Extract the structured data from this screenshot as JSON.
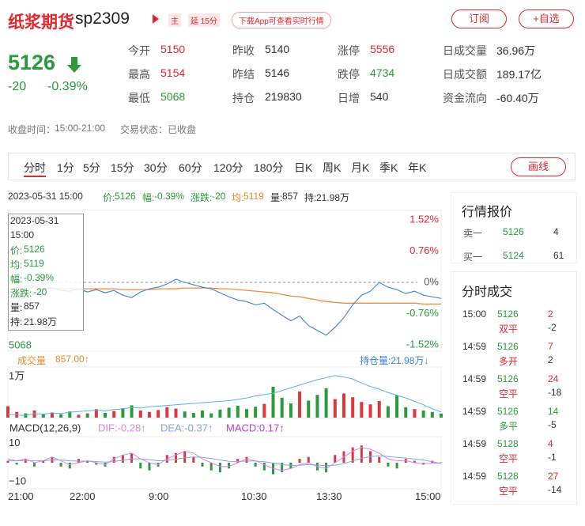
{
  "header": {
    "title": "纸浆期货",
    "code": "sp2309",
    "badge_main": "主",
    "badge_delay": "延 15分",
    "download": "下载App可查看实时行情",
    "subscribe": "订阅",
    "watchlist": "+自选"
  },
  "quote": {
    "price": "5126",
    "change": "-20",
    "change_pct": "-0.39%"
  },
  "stats": [
    {
      "label": "今开",
      "value": "5150",
      "tone": "up"
    },
    {
      "label": "最高",
      "value": "5154",
      "tone": "up"
    },
    {
      "label": "最低",
      "value": "5068",
      "tone": "down"
    },
    {
      "label": "昨收",
      "value": "5140"
    },
    {
      "label": "昨结",
      "value": "5146"
    },
    {
      "label": "持仓",
      "value": "219830"
    },
    {
      "label": "涨停",
      "value": "5556",
      "tone": "up"
    },
    {
      "label": "跌停",
      "value": "4734",
      "tone": "down"
    },
    {
      "label": "日增",
      "value": "540"
    },
    {
      "label": "日成交量",
      "value": "36.96万"
    },
    {
      "label": "日成交额",
      "value": "189.17亿"
    },
    {
      "label": "资金流向",
      "value": "-60.40万"
    }
  ],
  "status": {
    "close_time_label": "收盘时间：",
    "close_time": "15:00-21:00",
    "state_label": "交易状态：",
    "state": "已收盘"
  },
  "tabs": {
    "items": [
      "分时",
      "1分",
      "5分",
      "15分",
      "30分",
      "60分",
      "120分",
      "180分",
      "日K",
      "周K",
      "月K",
      "季K",
      "年K"
    ],
    "active": 0,
    "draw": "画线"
  },
  "info": {
    "datetime": "2023-05-31 15:00",
    "items": [
      {
        "label": "价:",
        "value": "5126",
        "tone": "down"
      },
      {
        "label": "幅:",
        "value": "-0.39%",
        "tone": "down"
      },
      {
        "label": "涨跌:",
        "value": "-20",
        "tone": "down"
      },
      {
        "label": "均:",
        "value": "5119",
        "tone": "avg"
      },
      {
        "label": "量:",
        "value": "857"
      },
      {
        "label": "持:",
        "value": "21.98万"
      }
    ]
  },
  "tooltip": {
    "date": "2023-05-31",
    "time": "15:00",
    "items": [
      {
        "label": "价:",
        "value": "5126",
        "tone": "down"
      },
      {
        "label": "均:",
        "value": "5119",
        "tone": "down"
      },
      {
        "label": "幅:",
        "value": "-0.39%",
        "tone": "down"
      },
      {
        "label": "涨跌:",
        "value": "-20",
        "tone": "down"
      },
      {
        "label": "量:",
        "value": "857"
      },
      {
        "label": "持:",
        "value": "21.98万"
      }
    ]
  },
  "intraday": {
    "price_color": "#3b82d6",
    "avg_color": "#f08a3c",
    "low_label": "5068",
    "ylim": [
      5068,
      5224
    ],
    "pct_ticks": [
      {
        "value": 5224,
        "label": "1.52%"
      },
      {
        "value": 5185,
        "label": "0.76%"
      },
      {
        "value": 5146,
        "label": "0%"
      },
      {
        "value": 5107,
        "label": "-0.76%"
      },
      {
        "value": 5068,
        "label": "-1.52%"
      }
    ],
    "price": [
      5136,
      5140,
      5138,
      5141,
      5137,
      5139,
      5136,
      5135,
      5138,
      5134,
      5137,
      5133,
      5136,
      5130,
      5127,
      5134,
      5138,
      5140,
      5144,
      5150,
      5146,
      5143,
      5140,
      5138,
      5133,
      5128,
      5124,
      5122,
      5118,
      5120,
      5112,
      5105,
      5098,
      5104,
      5092,
      5086,
      5080,
      5090,
      5102,
      5118,
      5130,
      5135,
      5146,
      5140,
      5137,
      5132,
      5135,
      5130,
      5128,
      5126
    ],
    "avg": [
      5138,
      5138,
      5138,
      5139,
      5139,
      5139,
      5138,
      5138,
      5138,
      5138,
      5138,
      5138,
      5138,
      5137,
      5137,
      5137,
      5137,
      5138,
      5138,
      5138,
      5139,
      5139,
      5139,
      5139,
      5138,
      5138,
      5137,
      5136,
      5135,
      5134,
      5133,
      5131,
      5129,
      5128,
      5126,
      5124,
      5122,
      5121,
      5120,
      5120,
      5120,
      5120,
      5120,
      5120,
      5120,
      5120,
      5120,
      5119,
      5119,
      5119
    ],
    "time_labels": [
      "21:00",
      "22:00",
      "9:00",
      "10:30",
      "13:30",
      "15:00"
    ]
  },
  "volume": {
    "label": "成交量",
    "value": "857.00↑",
    "hold_label": "持仓量:21.98万↓",
    "ylim": [
      0,
      10000
    ],
    "yticks": [
      {
        "value": 10000,
        "label": "1万"
      }
    ],
    "holdlim": [
      219000,
      226000
    ],
    "hold_color": "#56b3e8",
    "values": [
      2400,
      1200,
      900,
      1500,
      800,
      1100,
      700,
      1300,
      600,
      900,
      1800,
      1000,
      1400,
      2000,
      2600,
      1500,
      1200,
      1600,
      2200,
      1900,
      1300,
      1000,
      1500,
      900,
      1700,
      2100,
      2500,
      1800,
      2300,
      2900,
      6500,
      4200,
      3000,
      5500,
      3600,
      4800,
      6200,
      3900,
      5100,
      4300,
      3300,
      2800,
      3500,
      2400,
      4700,
      2200,
      1800,
      1500,
      1200,
      857
    ],
    "hold": [
      219500,
      219400,
      219300,
      219600,
      219500,
      219700,
      219600,
      219800,
      219900,
      220000,
      220100,
      220000,
      220200,
      220300,
      220500,
      220400,
      220600,
      220700,
      220800,
      220900,
      221000,
      221100,
      221200,
      221300,
      221400,
      221500,
      221700,
      221900,
      222200,
      222400,
      222600,
      223000,
      223400,
      223800,
      224200,
      224600,
      224900,
      225200,
      225000,
      224700,
      224100,
      223600,
      223200,
      222700,
      222300,
      221900,
      221400,
      220900,
      220300,
      219830
    ]
  },
  "macd": {
    "title": "MACD(12,26,9)",
    "dif_label": "DIF:-0.28↑",
    "dea_label": "DEA:-0.37↑",
    "macd_label": "MACD:0.17↑",
    "dif_color": "#e37ff0",
    "dea_color": "#7da7ea",
    "macd_color": "#b93fd0",
    "ylim": [
      -13.6,
      13.6
    ],
    "yticks": [
      10,
      {
        "value": -10,
        "label": "−10"
      }
    ],
    "values": [
      1,
      -1,
      2,
      -2,
      1,
      3,
      -2,
      -3,
      2,
      1,
      -1,
      -2,
      3,
      4,
      5,
      -3,
      -4,
      -2,
      4,
      5,
      6,
      3,
      -2,
      -4,
      -5,
      -3,
      2,
      3,
      -2,
      -4,
      -6,
      -5,
      -3,
      2,
      3,
      -4,
      -5,
      4,
      6,
      8,
      9,
      6,
      3,
      -2,
      -3,
      2,
      1,
      -1,
      1,
      0.17
    ],
    "dif": [
      2,
      1,
      2,
      0,
      1,
      3,
      1,
      -1,
      0,
      1,
      0,
      -1,
      2,
      4,
      5,
      2,
      0,
      -1,
      2,
      4,
      6,
      5,
      2,
      0,
      -2,
      -2,
      0,
      2,
      1,
      -1,
      -3,
      -4,
      -3,
      -1,
      0,
      -2,
      -3,
      0,
      3,
      6,
      8,
      7,
      5,
      2,
      1,
      1,
      0,
      -0.5,
      -0.3,
      -0.28
    ],
    "dea": [
      1,
      1,
      1.2,
      1,
      1,
      1.5,
      1.4,
      1,
      0.8,
      0.8,
      0.6,
      0.3,
      0.6,
      1.3,
      2,
      2,
      1.6,
      1,
      1.2,
      1.8,
      2.6,
      3,
      2.8,
      2.2,
      1.4,
      0.7,
      0.6,
      0.9,
      0.9,
      0.5,
      -0.2,
      -1,
      -1.4,
      -1.3,
      -1,
      -1.2,
      -1.6,
      -1.3,
      -0.4,
      0.9,
      2.3,
      3.2,
      3.6,
      3.3,
      2.8,
      2.4,
      1.9,
      1.4,
      0.5,
      -0.37
    ]
  },
  "quote_panel": {
    "title": "行情报价",
    "rows": [
      {
        "label": "卖一",
        "price": "5126",
        "vol": "4"
      },
      {
        "label": "买一",
        "price": "5124",
        "vol": "61"
      }
    ]
  },
  "trades": {
    "title": "分时成交",
    "rows": [
      {
        "time": "15:00",
        "price": "5126",
        "vol": "2",
        "type": "双平",
        "diff": "-2",
        "tone": "up"
      },
      {
        "time": "14:59",
        "price": "5126",
        "vol": "7",
        "type": "多开",
        "diff": "2",
        "tone": "up"
      },
      {
        "time": "14:59",
        "price": "5126",
        "vol": "24",
        "type": "空平",
        "diff": "-18",
        "tone": "up"
      },
      {
        "time": "14:59",
        "price": "5126",
        "vol": "14",
        "type": "多平",
        "diff": "-5",
        "tone": "down"
      },
      {
        "time": "14:59",
        "price": "5128",
        "vol": "4",
        "type": "空平",
        "diff": "-1",
        "tone": "up"
      },
      {
        "time": "14:59",
        "price": "5128",
        "vol": "27",
        "type": "空平",
        "diff": "-14",
        "tone": "up"
      }
    ]
  }
}
